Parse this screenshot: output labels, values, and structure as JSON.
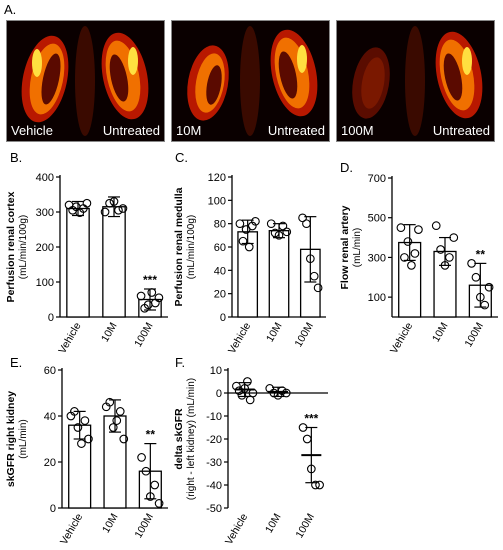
{
  "panel_labels": {
    "a": "A.",
    "b": "B.",
    "c": "C.",
    "d": "D.",
    "e": "E.",
    "f": "F."
  },
  "images": [
    {
      "left_label": "Vehicle",
      "right_label": "Untreated"
    },
    {
      "left_label": "10M",
      "right_label": "Untreated"
    },
    {
      "left_label": "100M",
      "right_label": "Untreated"
    }
  ],
  "colors": {
    "bar_fill": "#ffffff",
    "stroke": "#000000",
    "mri_bg": "#0a0000",
    "kidney_outer": "#b81800",
    "kidney_mid": "#f07000",
    "kidney_core": "#ffe040"
  },
  "chart_data": [
    {
      "id": "b",
      "type": "bar",
      "categories": [
        "Vehicle",
        "10M",
        "100M"
      ],
      "values": [
        310,
        315,
        50
      ],
      "errors": [
        20,
        28,
        30
      ],
      "points": [
        [
          320,
          305,
          315,
          298,
          310,
          325
        ],
        [
          300,
          325,
          330,
          305,
          310
        ],
        [
          60,
          25,
          35,
          70,
          40,
          55
        ]
      ],
      "significance": [
        "",
        "",
        "***"
      ],
      "ylabel": "Perfusion renal cortex (mL/min/100g)",
      "ylim": [
        0,
        400
      ],
      "yticks": [
        0,
        100,
        200,
        300,
        400
      ]
    },
    {
      "id": "c",
      "type": "bar",
      "categories": [
        "Vehicle",
        "10M",
        "100M"
      ],
      "values": [
        73,
        74,
        58
      ],
      "errors": [
        10,
        6,
        28
      ],
      "points": [
        [
          80,
          65,
          75,
          60,
          78,
          82
        ],
        [
          80,
          72,
          70,
          78,
          73
        ],
        [
          85,
          80,
          50,
          35,
          25
        ]
      ],
      "significance": [
        "",
        "",
        ""
      ],
      "ylabel": "Perfusion renal medulla (mL/min/100g)",
      "ylim": [
        0,
        120
      ],
      "yticks": [
        0,
        20,
        40,
        60,
        80,
        100,
        120
      ]
    },
    {
      "id": "d",
      "type": "bar",
      "categories": [
        "Vehicle",
        "10M",
        "100M"
      ],
      "values": [
        375,
        330,
        160
      ],
      "errors": [
        90,
        70,
        110
      ],
      "points": [
        [
          450,
          300,
          380,
          260,
          320,
          440
        ],
        [
          460,
          340,
          260,
          300,
          400
        ],
        [
          270,
          200,
          100,
          60,
          150
        ]
      ],
      "significance": [
        "",
        "",
        "**"
      ],
      "ylabel": "Flow renal artery (mL/min)",
      "ylim": [
        0,
        700
      ],
      "yticks": [
        100,
        300,
        500,
        700
      ]
    },
    {
      "id": "e",
      "type": "bar",
      "categories": [
        "Vehicle",
        "10M",
        "100M"
      ],
      "values": [
        36,
        40,
        16
      ],
      "errors": [
        6,
        7,
        12
      ],
      "points": [
        [
          40,
          42,
          35,
          28,
          38,
          30
        ],
        [
          44,
          46,
          35,
          38,
          42,
          30
        ],
        [
          22,
          16,
          5,
          10,
          2
        ]
      ],
      "significance": [
        "",
        "",
        "**"
      ],
      "ylabel": "skGFR right kidney (mL/min)",
      "ylim": [
        0,
        60
      ],
      "yticks": [
        0,
        20,
        40,
        60
      ]
    },
    {
      "id": "f",
      "type": "scatter",
      "categories": [
        "Vehicle",
        "10M",
        "100M"
      ],
      "values": [
        1.5,
        0.5,
        -27
      ],
      "errors": [
        3,
        2,
        12
      ],
      "points": [
        [
          3,
          1,
          -1,
          2,
          5,
          -3,
          0
        ],
        [
          2,
          0,
          -1,
          1,
          0
        ],
        [
          -15,
          -20,
          -33,
          -40,
          -40
        ]
      ],
      "significance": [
        "",
        "",
        "***"
      ],
      "ylabel": "delta skGFR (right - left kidney) (mL/min)",
      "ylim": [
        -50,
        10
      ],
      "yticks": [
        10,
        0,
        -10,
        -20,
        -30,
        -40,
        -50
      ]
    }
  ]
}
